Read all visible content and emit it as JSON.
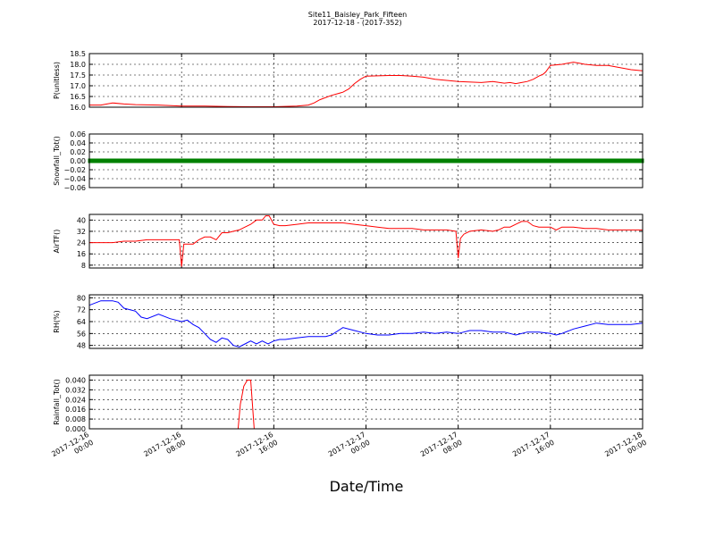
{
  "chart_data": {
    "type": "line",
    "title": "Site11_Baisley_Park_Fifteen",
    "subtitle": "2017-12-18 - (2017-352)",
    "xlabel": "Date/Time",
    "x_tick_labels": [
      [
        "2017-12-16",
        "00:00"
      ],
      [
        "2017-12-16",
        "08:00"
      ],
      [
        "2017-12-16",
        "16:00"
      ],
      [
        "2017-12-17",
        "00:00"
      ],
      [
        "2017-12-17",
        "08:00"
      ],
      [
        "2017-12-17",
        "16:00"
      ],
      [
        "2017-12-18",
        "00:00"
      ]
    ],
    "xlim_hours": [
      0,
      48
    ],
    "grid": true,
    "panels": [
      {
        "ylabel": "P(unitless)",
        "ylim": [
          16.0,
          18.5
        ],
        "yticks": [
          "16.0",
          "16.5",
          "17.0",
          "17.5",
          "18.0",
          "18.5"
        ],
        "series": [
          {
            "color": "#ff0000",
            "x": [
              0,
              1,
              2,
              3,
              4,
              6,
              8,
              10,
              12,
              14,
              16,
              18,
              19,
              19.5,
              20,
              21,
              22,
              22.5,
              23,
              23.5,
              24,
              26,
              27,
              28,
              29,
              30,
              32,
              34,
              35,
              36,
              36.5,
              37,
              37.5,
              38,
              38.5,
              39,
              39.4,
              39.6,
              40,
              41,
              42,
              42.5,
              43,
              44,
              45,
              46,
              47,
              48
            ],
            "y": [
              16.1,
              16.1,
              16.2,
              16.15,
              16.12,
              16.1,
              16.05,
              16.05,
              16.03,
              16.02,
              16.02,
              16.05,
              16.1,
              16.2,
              16.35,
              16.55,
              16.7,
              16.85,
              17.1,
              17.3,
              17.45,
              17.48,
              17.48,
              17.45,
              17.4,
              17.3,
              17.2,
              17.15,
              17.2,
              17.12,
              17.15,
              17.1,
              17.15,
              17.2,
              17.3,
              17.45,
              17.55,
              17.65,
              17.95,
              18.0,
              18.1,
              18.05,
              18.0,
              17.95,
              17.95,
              17.85,
              17.75,
              17.7
            ]
          }
        ]
      },
      {
        "ylabel": "Snowfall_Tot()",
        "ylim": [
          -0.06,
          0.06
        ],
        "yticks": [
          "−0.06",
          "−0.04",
          "−0.02",
          "0.00",
          "0.02",
          "0.04",
          "0.06"
        ],
        "series": [
          {
            "color": "#008000",
            "marker": true,
            "x": [
              0,
              48
            ],
            "y": [
              0.0,
              0.0
            ]
          }
        ]
      },
      {
        "ylabel": "AirTF()",
        "ylim": [
          6,
          44
        ],
        "yticks": [
          "8",
          "16",
          "24",
          "32",
          "40"
        ],
        "series": [
          {
            "color": "#ff0000",
            "x": [
              0,
              1,
              2,
              3,
              4,
              5,
              6,
              7,
              7.5,
              7.8,
              8.0,
              8.2,
              8.5,
              9,
              9.5,
              10,
              10.5,
              11,
              11.5,
              12,
              12.5,
              13,
              13.5,
              14,
              14.5,
              15,
              15.3,
              15.6,
              16,
              16.5,
              17,
              18,
              19,
              19.5,
              20,
              21,
              22,
              23,
              24,
              25,
              26,
              27,
              28,
              29,
              30,
              31,
              31.8,
              32.0,
              32.2,
              32.5,
              33,
              34,
              35,
              35.5,
              36,
              36.5,
              37,
              37.5,
              38,
              38.5,
              39,
              39.5,
              40,
              40.5,
              41,
              41.5,
              42,
              43,
              44,
              45,
              46,
              47,
              48
            ],
            "y": [
              24,
              24,
              24,
              25,
              25,
              26,
              26,
              26,
              26,
              26,
              7,
              23,
              23,
              23,
              26,
              28,
              28,
              26,
              31,
              31,
              32,
              33,
              35,
              37,
              40,
              40,
              43,
              43,
              37,
              36,
              36,
              37,
              38,
              38,
              38,
              38,
              38,
              37,
              36,
              35,
              34,
              34,
              34,
              33,
              33,
              33,
              32,
              13,
              27,
              30,
              32,
              33,
              32,
              33,
              35,
              35,
              37,
              39,
              39,
              36,
              35,
              35,
              35,
              33,
              35,
              35,
              35,
              34,
              34,
              33,
              33,
              33,
              33
            ]
          }
        ]
      },
      {
        "ylabel": "RH(%)",
        "ylim": [
          46,
          82
        ],
        "yticks": [
          "48",
          "56",
          "64",
          "72",
          "80"
        ],
        "series": [
          {
            "color": "#0000ff",
            "x": [
              0,
              1,
              2,
              2.5,
              3,
              4,
              4.5,
              5,
              6,
              7,
              7.5,
              8,
              8.5,
              9,
              9.5,
              10,
              10.5,
              11,
              11.5,
              12,
              12.5,
              13,
              13.5,
              14,
              14.5,
              15,
              15.5,
              16,
              16.5,
              17,
              18,
              19,
              20,
              20.5,
              21,
              22,
              23,
              24,
              25,
              26,
              27,
              28,
              29,
              30,
              31,
              32,
              33,
              34,
              35,
              36,
              37,
              38,
              39,
              40,
              40.5,
              41,
              42,
              43,
              44,
              45,
              46,
              47,
              48
            ],
            "y": [
              75,
              78,
              78,
              77,
              73,
              71,
              67,
              66,
              69,
              66,
              65,
              64,
              65,
              62,
              60,
              56,
              52,
              50,
              53,
              52,
              48,
              47,
              49,
              51,
              49,
              51,
              49,
              51,
              52,
              52,
              53,
              54,
              54,
              54,
              55,
              60,
              58,
              56,
              55,
              55,
              56,
              56,
              57,
              56,
              57,
              56,
              58,
              58,
              57,
              57,
              55,
              57,
              57,
              56,
              55,
              56,
              59,
              61,
              63,
              62,
              62,
              62,
              63
            ]
          }
        ]
      },
      {
        "ylabel": "Rainfall_Tot()",
        "ylim": [
          0.0,
          0.044
        ],
        "yticks": [
          "0.000",
          "0.008",
          "0.016",
          "0.024",
          "0.032",
          "0.040"
        ],
        "series": [
          {
            "color": "#ff0000",
            "x": [
              0,
              12.9,
              13.1,
              13.4,
              13.7,
              14.0,
              14.3,
              48
            ],
            "y": [
              0.0,
              0.0,
              0.02,
              0.035,
              0.04,
              0.04,
              0.0,
              0.0
            ]
          }
        ]
      }
    ]
  }
}
